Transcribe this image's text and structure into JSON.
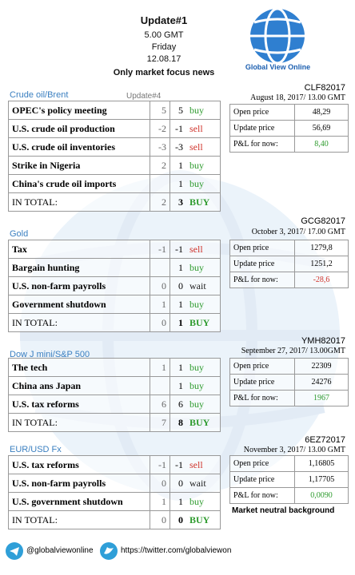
{
  "header": {
    "title": "Update#1",
    "time": "5.00 GMT",
    "day": "Friday",
    "date": "12.08.17",
    "subtitle": "Only market focus news",
    "logo": "Global View Online"
  },
  "signal_colors": {
    "buy": "#2e9b2e",
    "sell": "#d0342c",
    "wait": "#222222",
    "BUY": "#2e9b2e"
  },
  "sections": [
    {
      "name": "Crude oil/Brent",
      "note": "Update#4",
      "rows": [
        {
          "label": "OPEC's policy meeting",
          "prev": 5,
          "score": 5,
          "signal": "buy"
        },
        {
          "label": "U.S. crude oil production",
          "prev": -2,
          "score": -1,
          "signal": "sell"
        },
        {
          "label": "U.S. crude oil inventories",
          "prev": -3,
          "score": -3,
          "signal": "sell"
        },
        {
          "label": "Strike in Nigeria",
          "prev": 2,
          "score": 1,
          "signal": "buy"
        },
        {
          "label": "China's crude oil imports",
          "prev": null,
          "score": 1,
          "signal": "buy"
        }
      ],
      "total": {
        "label": "IN TOTAL:",
        "prev": 2,
        "score": 3,
        "signal": "BUY"
      },
      "contract": {
        "code": "CLF82017",
        "date": "August 18, 2017/ 13.00 GMT",
        "rows": [
          {
            "label": "Open price",
            "value": "48,29"
          },
          {
            "label": "Update price",
            "value": "56,69"
          },
          {
            "label": "P&L for now:",
            "value": "8,40",
            "color": "#2e9b2e"
          }
        ]
      }
    },
    {
      "name": "Gold",
      "rows": [
        {
          "label": "Tax",
          "prev": -1,
          "score": -1,
          "signal": "sell"
        },
        {
          "label": "Bargain hunting",
          "prev": null,
          "score": 1,
          "signal": "buy"
        },
        {
          "label": "U.S. non-farm payrolls",
          "prev": 0,
          "score": 0,
          "signal": "wait"
        },
        {
          "label": "Government shutdown",
          "prev": 1,
          "score": 1,
          "signal": "buy"
        }
      ],
      "total": {
        "label": "IN TOTAL:",
        "prev": 0,
        "score": 1,
        "signal": "BUY"
      },
      "contract": {
        "code": "GCG82017",
        "date": "October 3, 2017/ 17.00 GMT",
        "rows": [
          {
            "label": "Open price",
            "value": "1279,8"
          },
          {
            "label": "Update price",
            "value": "1251,2"
          },
          {
            "label": "P&L for now:",
            "value": "-28,6",
            "color": "#d0342c"
          }
        ]
      }
    },
    {
      "name": "Dow J mini/S&P 500",
      "rows": [
        {
          "label": "The tech",
          "prev": 1,
          "score": 1,
          "signal": "buy"
        },
        {
          "label": "China ans Japan",
          "prev": null,
          "score": 1,
          "signal": "buy"
        },
        {
          "label": "U.S. tax reforms",
          "prev": 6,
          "score": 6,
          "signal": "buy"
        }
      ],
      "total": {
        "label": "IN TOTAL:",
        "prev": 7,
        "score": 8,
        "signal": "BUY"
      },
      "contract": {
        "code": "YMH82017",
        "date": "September 27, 2017/ 13.00GMT",
        "rows": [
          {
            "label": "Open price",
            "value": "22309"
          },
          {
            "label": "Update price",
            "value": "24276"
          },
          {
            "label": "P&L for now:",
            "value": "1967",
            "color": "#2e9b2e"
          }
        ]
      }
    },
    {
      "name": "EUR/USD Fx",
      "rows": [
        {
          "label": "U.S. tax reforms",
          "prev": -1,
          "score": -1,
          "signal": "sell"
        },
        {
          "label": "U.S. non-farm payrolls",
          "prev": 0,
          "score": 0,
          "signal": "wait"
        },
        {
          "label": "U.S. government shutdown",
          "prev": 1,
          "score": 1,
          "signal": "buy"
        }
      ],
      "total": {
        "label": "IN TOTAL:",
        "prev": 0,
        "score": 0,
        "signal": "BUY"
      },
      "contract": {
        "code": "6EZ72017",
        "date": "November 3, 2017/ 13.00 GMT",
        "rows": [
          {
            "label": "Open price",
            "value": "1,16805"
          },
          {
            "label": "Update price",
            "value": "1,17705"
          },
          {
            "label": "P&L for now:",
            "value": "0,0090",
            "color": "#2e9b2e"
          }
        ],
        "footnote": "Market neutral background"
      }
    }
  ],
  "footer": {
    "telegram": "@globalviewonline",
    "twitter": "https://twitter.com/globalviewon"
  }
}
